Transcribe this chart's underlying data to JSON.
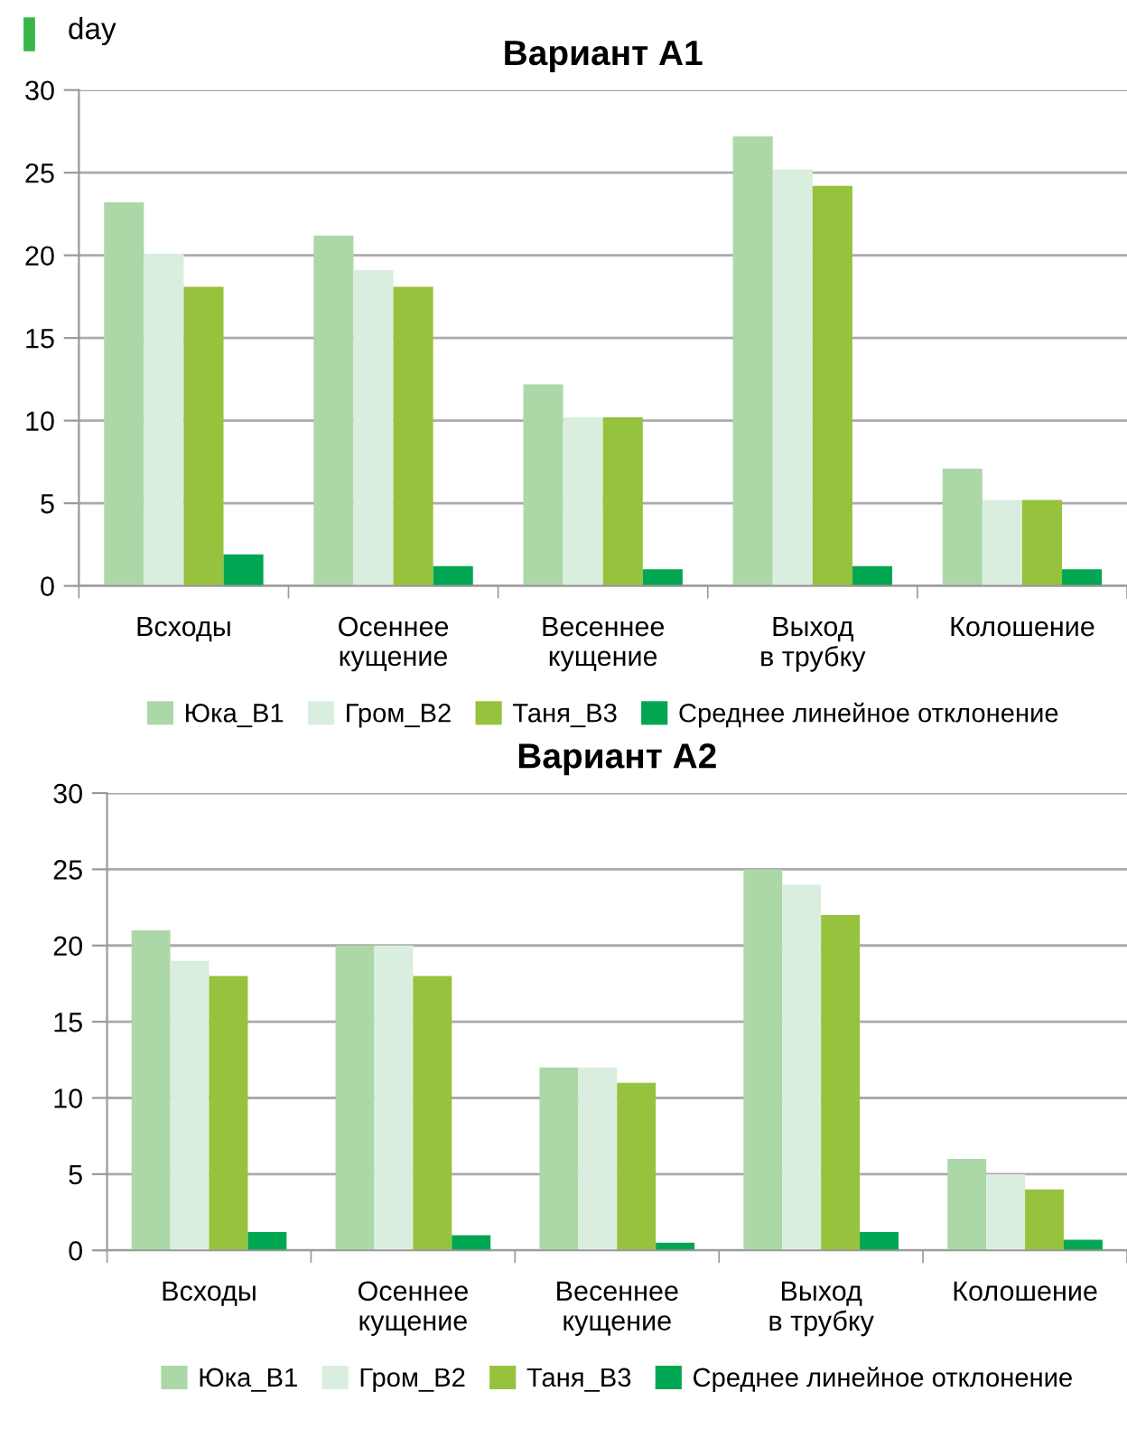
{
  "chart_data": [
    {
      "type": "bar",
      "title": "Вариант А1",
      "ylabel": "day",
      "categories": [
        "Всходы",
        "Осеннее\nкущение",
        "Весеннее\nкущение",
        "Выход\nв трубку",
        "Колошение"
      ],
      "series": [
        {
          "name": "Юка_В1",
          "color": "#acd8a8",
          "values": [
            23.2,
            21.2,
            12.2,
            27.2,
            7.1
          ]
        },
        {
          "name": "Гром_В2",
          "color": "#daeee0",
          "values": [
            20.1,
            19.1,
            10.2,
            25.2,
            5.2
          ]
        },
        {
          "name": "Таня_В3",
          "color": "#97c23d",
          "values": [
            18.1,
            18.1,
            10.2,
            24.2,
            5.2
          ]
        },
        {
          "name": "Среднее линейное отклонение",
          "color": "#00a651",
          "values": [
            1.9,
            1.2,
            1.0,
            1.2,
            1.0
          ]
        }
      ],
      "ylim": [
        0,
        30
      ],
      "yticks": [
        0,
        5,
        10,
        15,
        20,
        25,
        30
      ],
      "grid": "y",
      "legend": "bottom"
    },
    {
      "type": "bar",
      "title": "Вариант А2",
      "categories": [
        "Всходы",
        "Осеннее\nкущение",
        "Весеннее\nкущение",
        "Выход\nв трубку",
        "Колошение"
      ],
      "series": [
        {
          "name": "Юка_В1",
          "color": "#acd8a8",
          "values": [
            21,
            20,
            12,
            25,
            6
          ]
        },
        {
          "name": "Гром_В2",
          "color": "#daeee0",
          "values": [
            19,
            20,
            12,
            24,
            5
          ]
        },
        {
          "name": "Таня_В3",
          "color": "#97c23d",
          "values": [
            18,
            18,
            11,
            22,
            4
          ]
        },
        {
          "name": "Среднее линейное отклонение",
          "color": "#00a651",
          "values": [
            1.2,
            1.0,
            0.5,
            1.2,
            0.7
          ]
        }
      ],
      "ylim": [
        0,
        30
      ],
      "yticks": [
        0,
        5,
        10,
        15,
        20,
        25,
        30
      ],
      "grid": "y",
      "legend": "bottom"
    }
  ]
}
